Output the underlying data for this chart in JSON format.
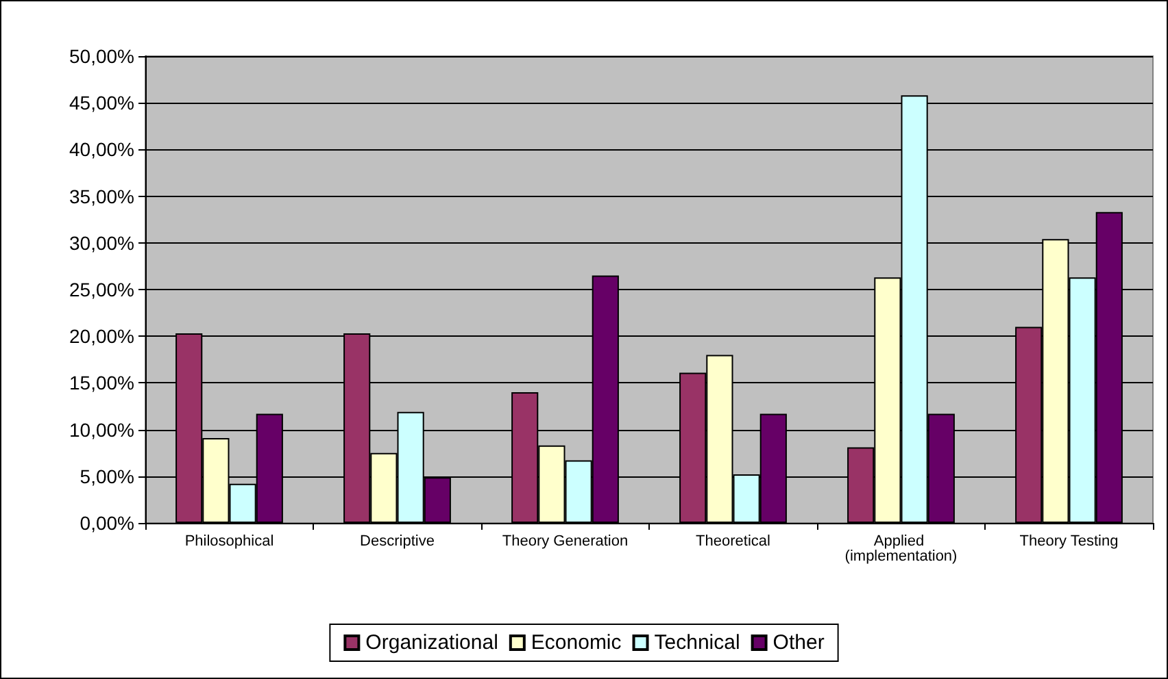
{
  "chart_data": {
    "type": "bar",
    "categories": [
      "Philosophical",
      "Descriptive",
      "Theory Generation",
      "Theoretical",
      "Applied (implementation)",
      "Theory Testing"
    ],
    "series": [
      {
        "name": "Organizational",
        "color": "#993366",
        "values": [
          20.3,
          20.3,
          14.0,
          16.1,
          8.1,
          21.0
        ]
      },
      {
        "name": "Economic",
        "color": "#ffffcc",
        "values": [
          9.1,
          7.5,
          8.3,
          18.0,
          26.3,
          30.4
        ]
      },
      {
        "name": "Technical",
        "color": "#ccffff",
        "values": [
          4.2,
          11.9,
          6.7,
          5.2,
          45.8,
          26.3
        ]
      },
      {
        "name": "Other",
        "color": "#660066",
        "values": [
          11.7,
          4.9,
          26.5,
          11.7,
          11.7,
          33.3
        ]
      }
    ],
    "ylim": [
      0,
      50
    ],
    "yticks": [
      {
        "value": 0,
        "label": "0,00%"
      },
      {
        "value": 5,
        "label": "5,00%"
      },
      {
        "value": 10,
        "label": "10,00%"
      },
      {
        "value": 15,
        "label": "15,00%"
      },
      {
        "value": 20,
        "label": "20,00%"
      },
      {
        "value": 25,
        "label": "25,00%"
      },
      {
        "value": 30,
        "label": "30,00%"
      },
      {
        "value": 35,
        "label": "35,00%"
      },
      {
        "value": 40,
        "label": "40,00%"
      },
      {
        "value": 45,
        "label": "45,00%"
      },
      {
        "value": 50,
        "label": "50,00%"
      }
    ],
    "grid": "y",
    "legend": "bottom"
  }
}
